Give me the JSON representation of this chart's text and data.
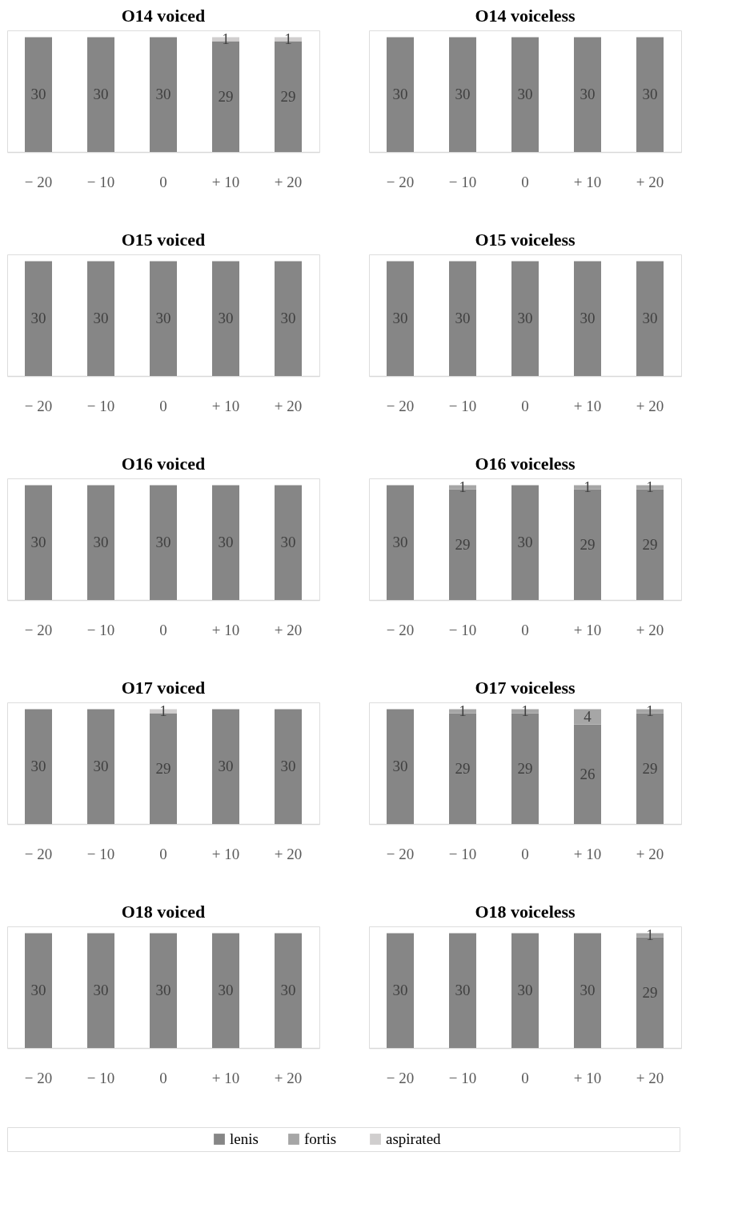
{
  "chart_data": [
    {
      "type": "bar",
      "title": "O14 voiced",
      "categories": [
        "− 20",
        "− 10",
        "0",
        "+ 10",
        "+ 20"
      ],
      "stacked": true,
      "data_labels": true,
      "tick_labels": "x",
      "series": [
        {
          "color": "#868686",
          "values": [
            30,
            30,
            30,
            29,
            29
          ]
        },
        {
          "color": "#d0cece",
          "values": [
            null,
            null,
            null,
            1,
            1
          ]
        }
      ]
    },
    {
      "type": "bar",
      "title": "O14 voiceless",
      "categories": [
        "− 20",
        "− 10",
        "0",
        "+ 10",
        "+ 20"
      ],
      "stacked": true,
      "data_labels": true,
      "tick_labels": "x",
      "series": [
        {
          "color": "#868686",
          "values": [
            30,
            30,
            30,
            30,
            30
          ]
        }
      ]
    },
    {
      "type": "bar",
      "title": "O15 voiced",
      "categories": [
        "− 20",
        "− 10",
        "0",
        "+ 10",
        "+ 20"
      ],
      "stacked": true,
      "data_labels": true,
      "tick_labels": "x",
      "series": [
        {
          "color": "#868686",
          "values": [
            30,
            30,
            30,
            30,
            30
          ]
        }
      ]
    },
    {
      "type": "bar",
      "title": "O15 voiceless",
      "categories": [
        "− 20",
        "− 10",
        "0",
        "+ 10",
        "+ 20"
      ],
      "stacked": true,
      "data_labels": true,
      "tick_labels": "x",
      "series": [
        {
          "color": "#868686",
          "values": [
            30,
            30,
            30,
            30,
            30
          ]
        }
      ]
    },
    {
      "type": "bar",
      "title": "O16 voiced",
      "categories": [
        "− 20",
        "− 10",
        "0",
        "+ 10",
        "+ 20"
      ],
      "stacked": true,
      "data_labels": true,
      "tick_labels": "x",
      "series": [
        {
          "color": "#868686",
          "values": [
            30,
            30,
            30,
            30,
            30
          ]
        }
      ]
    },
    {
      "type": "bar",
      "title": "O16 voiceless",
      "categories": [
        "− 20",
        "− 10",
        "0",
        "+ 10",
        "+ 20"
      ],
      "stacked": true,
      "data_labels": true,
      "tick_labels": "x",
      "series": [
        {
          "color": "#868686",
          "values": [
            30,
            29,
            30,
            29,
            29
          ]
        },
        {
          "color": "#a6a6a6",
          "values": [
            null,
            1,
            null,
            1,
            1
          ]
        }
      ]
    },
    {
      "type": "bar",
      "title": "O17 voiced",
      "categories": [
        "− 20",
        "− 10",
        "0",
        "+ 10",
        "+ 20"
      ],
      "stacked": true,
      "data_labels": true,
      "tick_labels": "x",
      "series": [
        {
          "color": "#868686",
          "values": [
            30,
            30,
            29,
            30,
            30
          ]
        },
        {
          "color": "#d0cece",
          "values": [
            null,
            null,
            1,
            null,
            null
          ]
        }
      ]
    },
    {
      "type": "bar",
      "title": "O17 voiceless",
      "categories": [
        "− 20",
        "− 10",
        "0",
        "+ 10",
        "+ 20"
      ],
      "stacked": true,
      "data_labels": true,
      "tick_labels": "x",
      "series": [
        {
          "color": "#868686",
          "values": [
            30,
            29,
            29,
            26,
            29
          ]
        },
        {
          "color": "#a6a6a6",
          "values": [
            null,
            1,
            1,
            4,
            1
          ]
        }
      ]
    },
    {
      "type": "bar",
      "title": "O18 voiced",
      "categories": [
        "− 20",
        "− 10",
        "0",
        "+ 10",
        "+ 20"
      ],
      "stacked": true,
      "data_labels": true,
      "tick_labels": "x",
      "series": [
        {
          "color": "#868686",
          "values": [
            30,
            30,
            30,
            30,
            30
          ]
        }
      ]
    },
    {
      "type": "bar",
      "title": "O18 voiceless",
      "categories": [
        "− 20",
        "− 10",
        "0",
        "+ 10",
        "+ 20"
      ],
      "stacked": true,
      "data_labels": true,
      "legend": "bottom",
      "tick_labels": "x",
      "series": [
        {
          "name": "lenis",
          "color": "#868686",
          "values": [
            30,
            30,
            30,
            30,
            29
          ]
        },
        {
          "name": "fortis",
          "color": "#a6a6a6",
          "values": [
            null,
            null,
            null,
            null,
            1
          ]
        },
        {
          "name": "aspirated",
          "color": "#d0cece",
          "values": [
            null,
            null,
            null,
            null,
            null
          ]
        }
      ]
    }
  ]
}
